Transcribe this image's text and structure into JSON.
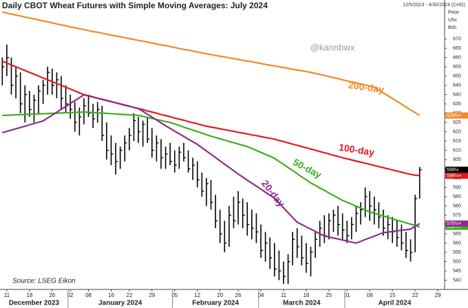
{
  "chart_data": {
    "type": "ohlc",
    "title": "Daily CBOT Wheat Futures with Simple Moving Averages: July 2024",
    "date_range": "12/5/2023 - 4/30/2024 (CHG)",
    "watermark": "@kannbwx",
    "source": "Source: LSEG Eikon",
    "y_label_lines": [
      "Price",
      "USc",
      "Bsh"
    ],
    "months": [
      "December 2023",
      "January 2024",
      "February 2024",
      "March 2024",
      "April 2024"
    ],
    "categories": [
      null,
      "11",
      null,
      null,
      null,
      null,
      "18",
      null,
      null,
      null,
      null,
      "26",
      null,
      null,
      null,
      "02",
      null,
      null,
      null,
      "08",
      null,
      null,
      null,
      null,
      "16",
      null,
      null,
      null,
      "22",
      null,
      null,
      null,
      null,
      "29",
      null,
      null,
      null,
      null,
      "05",
      null,
      null,
      null,
      null,
      "12",
      null,
      null,
      null,
      null,
      "20",
      null,
      null,
      null,
      "26",
      null,
      null,
      null,
      null,
      "04",
      null,
      null,
      null,
      null,
      "11",
      null,
      null,
      null,
      null,
      "18",
      null,
      null,
      null,
      null,
      "25",
      null,
      null,
      null,
      "01",
      null,
      null,
      null,
      null,
      "08",
      null,
      null,
      null,
      null,
      "15",
      null,
      null,
      null,
      null,
      "22",
      null,
      null,
      null,
      null,
      "29",
      null
    ],
    "ohlc": {
      "color": "#000000",
      "high": [
        660,
        667,
        660,
        655,
        652,
        645,
        642,
        640,
        645,
        648,
        655,
        654,
        652,
        650,
        645,
        640,
        636,
        633,
        638,
        640,
        635,
        636,
        634,
        625,
        618,
        614,
        612,
        618,
        622,
        630,
        628,
        626,
        628,
        622,
        618,
        616,
        612,
        614,
        610,
        612,
        614,
        610,
        606,
        604,
        598,
        595,
        594,
        586,
        578,
        572,
        580,
        585,
        588,
        584,
        582,
        578,
        576,
        570,
        566,
        563,
        560,
        556,
        550,
        554,
        566,
        568,
        564,
        560,
        558,
        566,
        572,
        575,
        576,
        578,
        580,
        576,
        572,
        574,
        580,
        582,
        590,
        588,
        585,
        582,
        578,
        575,
        574,
        572,
        570,
        566,
        562,
        586,
        601,
        null,
        null,
        null,
        null,
        null
      ],
      "low": [
        645,
        650,
        640,
        638,
        630,
        625,
        628,
        625,
        630,
        635,
        640,
        640,
        638,
        632,
        630,
        627,
        620,
        618,
        624,
        628,
        622,
        625,
        615,
        605,
        602,
        597,
        600,
        604,
        610,
        615,
        614,
        612,
        614,
        606,
        604,
        600,
        600,
        602,
        598,
        600,
        604,
        598,
        594,
        590,
        585,
        580,
        578,
        568,
        560,
        555,
        558,
        568,
        570,
        568,
        564,
        562,
        560,
        552,
        550,
        546,
        542,
        540,
        538,
        538,
        548,
        552,
        548,
        544,
        542,
        552,
        558,
        560,
        562,
        566,
        564,
        562,
        560,
        562,
        566,
        570,
        574,
        572,
        570,
        568,
        564,
        562,
        560,
        558,
        556,
        552,
        550,
        555,
        584,
        null,
        null,
        null,
        null,
        null
      ],
      "close": [
        655,
        660,
        645,
        650,
        635,
        640,
        632,
        637,
        642,
        645,
        652,
        645,
        648,
        638,
        635,
        632,
        625,
        628,
        634,
        630,
        627,
        632,
        618,
        610,
        608,
        604,
        610,
        614,
        618,
        626,
        620,
        624,
        616,
        610,
        614,
        606,
        608,
        604,
        602,
        609,
        606,
        600,
        602,
        594,
        588,
        592,
        582,
        572,
        565,
        560,
        575,
        572,
        582,
        575,
        570,
        568,
        566,
        556,
        560,
        552,
        546,
        545,
        542,
        550,
        562,
        558,
        552,
        549,
        555,
        562,
        568,
        564,
        572,
        575,
        570,
        567,
        564,
        570,
        576,
        578,
        585,
        580,
        578,
        574,
        568,
        570,
        566,
        563,
        560,
        556,
        555,
        584,
        599.5,
        null,
        null,
        null,
        null,
        null
      ],
      "tag": "599½"
    },
    "series": [
      {
        "name": "200-day",
        "color": "#f08a24",
        "tag": "628¾+",
        "values": [
          684.5,
          684,
          683.4,
          682.9,
          682.4,
          681.8,
          681.3,
          680.8,
          680.3,
          679.7,
          679.2,
          678.7,
          678.1,
          677.6,
          677.1,
          676.5,
          676,
          675.5,
          675,
          674.5,
          674,
          673.6,
          673.1,
          672.6,
          672.1,
          671.6,
          671.2,
          670.7,
          670.2,
          669.7,
          669.2,
          668.8,
          668.3,
          667.8,
          667.3,
          666.8,
          666.4,
          665.9,
          665.4,
          664.9,
          664.4,
          664,
          663.5,
          663,
          662.5,
          662,
          661.6,
          661.1,
          660.7,
          660.3,
          659.8,
          659.4,
          659,
          658.5,
          658.1,
          657.7,
          657.2,
          656.8,
          656.3,
          655.9,
          655.5,
          655,
          654.6,
          654.2,
          653.7,
          653.3,
          652.9,
          652.4,
          652,
          651.4,
          650.9,
          650.3,
          649.7,
          649.2,
          648.6,
          648,
          647.4,
          646.9,
          646.3,
          645.7,
          645.2,
          644.6,
          644,
          642.5,
          640.9,
          639.4,
          637.9,
          636.4,
          634.9,
          633.3,
          631.8,
          630.3,
          628.75,
          null,
          null,
          null,
          null,
          null
        ]
      },
      {
        "name": "100-day",
        "color": "#e31a1c",
        "tag": "596¼+",
        "values": [
          658,
          657,
          656,
          655,
          654,
          653,
          652,
          651,
          650,
          649,
          648,
          647,
          646,
          645,
          644,
          643,
          642,
          641,
          640,
          639.4,
          638.8,
          638.1,
          637.5,
          636.9,
          636.3,
          635.6,
          635,
          634.4,
          633.8,
          633.1,
          632.5,
          631.9,
          631.2,
          630.6,
          630,
          629.3,
          628.7,
          628.1,
          627.4,
          626.8,
          626.2,
          625.5,
          624.9,
          624.3,
          623.6,
          623,
          622.5,
          622.1,
          621.6,
          621.1,
          620.7,
          620.2,
          619.7,
          619.3,
          618.8,
          618.3,
          617.9,
          617.4,
          616.9,
          616.5,
          616,
          615.3,
          614.7,
          614,
          613.3,
          612.7,
          612,
          611.3,
          610.7,
          610,
          609.3,
          608.7,
          608,
          607.3,
          606.7,
          606,
          605.4,
          604.8,
          604.2,
          603.6,
          603,
          602.4,
          601.8,
          601.2,
          600.6,
          600,
          599.4,
          598.8,
          598.2,
          597.6,
          597,
          596.6,
          596.3,
          null,
          null,
          null,
          null,
          null
        ]
      },
      {
        "name": "50-day",
        "color": "#3cae1e",
        "tag": "568¾+",
        "values": [
          628.8,
          628.9,
          629,
          629.1,
          629.2,
          629.3,
          629.4,
          629.5,
          629.6,
          629.7,
          629.8,
          629.9,
          630,
          630.1,
          630.2,
          630.3,
          630.4,
          630.5,
          630.6,
          630.5,
          630.3,
          630.2,
          630,
          629.9,
          629.7,
          629.6,
          629.4,
          629.3,
          629.1,
          629,
          628.8,
          628.3,
          627.7,
          627.2,
          626.6,
          626.1,
          625.5,
          625,
          624.2,
          623.4,
          622.5,
          621.7,
          620.9,
          620.1,
          619.3,
          618.4,
          617.6,
          616.9,
          616.2,
          615.5,
          614.8,
          614.1,
          613.4,
          612.7,
          612,
          611,
          609.9,
          608.9,
          607.8,
          606.8,
          605.7,
          604,
          602.4,
          600.7,
          599.1,
          597.4,
          595.7,
          594.1,
          592.4,
          591.1,
          589.7,
          588.4,
          587,
          585.7,
          584.3,
          583,
          582,
          580.9,
          579.9,
          578.9,
          577.8,
          576.8,
          576,
          575.3,
          574.6,
          573.8,
          573,
          572.3,
          571.6,
          570.9,
          570.2,
          569.5,
          568.75,
          null,
          null,
          null,
          null,
          null
        ]
      },
      {
        "name": "20-day",
        "color": "#8e2a8e",
        "tag": "570½+",
        "values": [
          619.5,
          620.2,
          620.9,
          621.6,
          622.3,
          623,
          623.7,
          624.4,
          625.1,
          625.8,
          627.4,
          628.9,
          630.5,
          632.1,
          633.6,
          635.2,
          636.8,
          638.3,
          639.9,
          639.3,
          638.7,
          638,
          637.4,
          636.8,
          636.2,
          635.6,
          635,
          634.3,
          633.7,
          633.1,
          632.5,
          631,
          629.4,
          627.9,
          626.3,
          624.8,
          623.2,
          621.8,
          620.3,
          618.9,
          617.5,
          616,
          614.6,
          613.2,
          611.4,
          609.6,
          607.9,
          606.1,
          604.3,
          602.5,
          600.8,
          599,
          597.2,
          595.6,
          593.9,
          592.3,
          590.7,
          589.1,
          587.4,
          585.8,
          584.2,
          581.6,
          579,
          576.4,
          573.8,
          571.2,
          570,
          568.7,
          567.5,
          566.3,
          565,
          563.8,
          563.3,
          562.7,
          562.2,
          561.6,
          561.1,
          560.5,
          560,
          560.9,
          561.9,
          562.8,
          563.7,
          564.7,
          565.6,
          565.9,
          566.2,
          566.6,
          566.9,
          567.2,
          567.5,
          569,
          570.5,
          null,
          null,
          null,
          null,
          null
        ]
      }
    ],
    "ylim": [
      535,
      691
    ],
    "yticks": [
      540,
      545,
      550,
      555,
      560,
      565,
      570,
      575,
      580,
      585,
      590,
      595,
      600,
      605,
      610,
      615,
      620,
      625,
      630,
      635,
      640,
      645,
      650,
      655,
      660,
      665,
      670
    ],
    "grid": false
  }
}
